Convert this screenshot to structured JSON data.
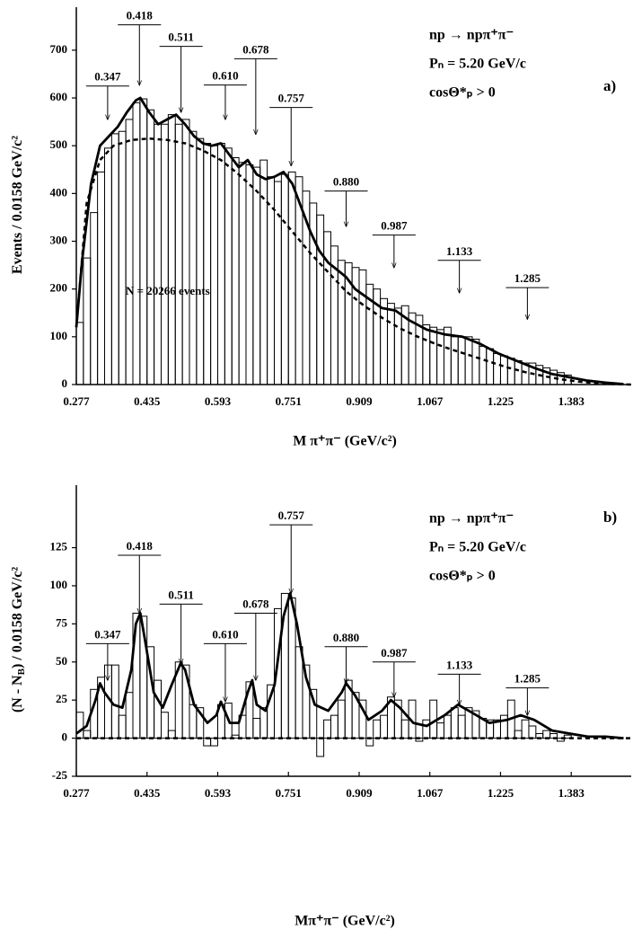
{
  "chart_data": [
    {
      "type": "histogram",
      "xlabel": "M π⁺π⁻ (GeV/c²)",
      "ylabel": [
        "Events / 0.0158 GeV/c²"
      ],
      "info": [
        "np → npπ⁺π⁻",
        "Pₙ = 5.20 GeV/c",
        "cosΘ*ₚ > 0"
      ],
      "panel_label": "a)",
      "note": "N = 20266 events",
      "color": "#000000",
      "xlim": [
        0.277,
        1.517
      ],
      "ylim": [
        0,
        790
      ],
      "xticks": [
        0.277,
        0.435,
        0.593,
        0.751,
        0.909,
        1.067,
        1.225,
        1.383
      ],
      "yticks": [
        0,
        100,
        200,
        300,
        400,
        500,
        600,
        700
      ],
      "bins": [
        0.277,
        0.2928,
        0.3086,
        0.3244,
        0.3402,
        0.356,
        0.3718,
        0.3876,
        0.4034,
        0.4192,
        0.435,
        0.4508,
        0.4666,
        0.4824,
        0.4982,
        0.514,
        0.5298,
        0.5456,
        0.5614,
        0.5772,
        0.593,
        0.6088,
        0.6246,
        0.6404,
        0.6562,
        0.672,
        0.6878,
        0.7036,
        0.7194,
        0.7352,
        0.751,
        0.7668,
        0.7826,
        0.7984,
        0.8142,
        0.83,
        0.8458,
        0.8616,
        0.8774,
        0.8932,
        0.909,
        0.9248,
        0.9406,
        0.9564,
        0.9722,
        0.988,
        1.0038,
        1.0196,
        1.0354,
        1.0512,
        1.067,
        1.0828,
        1.0986,
        1.1144,
        1.1302,
        1.146,
        1.1618,
        1.1776,
        1.1934,
        1.2092,
        1.225,
        1.2408,
        1.2566,
        1.2724,
        1.2882,
        1.304,
        1.3198,
        1.3356,
        1.3514,
        1.3672,
        1.383
      ],
      "values": [
        130,
        265,
        360,
        445,
        495,
        525,
        530,
        555,
        590,
        598,
        575,
        545,
        545,
        565,
        545,
        555,
        530,
        515,
        505,
        500,
        505,
        495,
        475,
        465,
        460,
        455,
        470,
        435,
        425,
        440,
        445,
        435,
        405,
        380,
        355,
        320,
        290,
        260,
        255,
        245,
        240,
        210,
        200,
        180,
        170,
        160,
        165,
        150,
        145,
        125,
        120,
        115,
        120,
        100,
        100,
        100,
        95,
        80,
        75,
        65,
        60,
        55,
        50,
        45,
        45,
        40,
        35,
        30,
        25,
        20
      ],
      "fit": {
        "x": [
          0.277,
          0.29,
          0.31,
          0.33,
          0.35,
          0.37,
          0.39,
          0.41,
          0.42,
          0.44,
          0.46,
          0.48,
          0.5,
          0.52,
          0.54,
          0.56,
          0.58,
          0.6,
          0.62,
          0.64,
          0.66,
          0.68,
          0.7,
          0.72,
          0.74,
          0.76,
          0.78,
          0.8,
          0.82,
          0.84,
          0.86,
          0.88,
          0.9,
          0.93,
          0.96,
          0.99,
          1.02,
          1.06,
          1.1,
          1.14,
          1.18,
          1.22,
          1.26,
          1.3,
          1.34,
          1.38,
          1.42,
          1.46,
          1.5
        ],
        "values": [
          120,
          260,
          420,
          500,
          520,
          540,
          570,
          595,
          600,
          570,
          545,
          555,
          565,
          545,
          520,
          505,
          500,
          505,
          480,
          455,
          470,
          440,
          430,
          435,
          445,
          420,
          370,
          320,
          280,
          255,
          240,
          225,
          200,
          180,
          160,
          155,
          135,
          115,
          105,
          100,
          85,
          65,
          50,
          35,
          22,
          15,
          8,
          4,
          1
        ]
      },
      "background": {
        "x": [
          0.277,
          0.3,
          0.33,
          0.36,
          0.4,
          0.44,
          0.48,
          0.52,
          0.56,
          0.6,
          0.64,
          0.68,
          0.72,
          0.76,
          0.8,
          0.84,
          0.88,
          0.92,
          0.96,
          1.0,
          1.04,
          1.08,
          1.12,
          1.16,
          1.2,
          1.24,
          1.28,
          1.32,
          1.36,
          1.4,
          1.44,
          1.48,
          1.52
        ],
        "values": [
          120,
          380,
          470,
          500,
          512,
          515,
          512,
          505,
          490,
          470,
          440,
          405,
          365,
          320,
          275,
          235,
          195,
          165,
          140,
          118,
          100,
          85,
          72,
          60,
          48,
          36,
          26,
          18,
          11,
          6,
          3,
          1,
          0
        ]
      },
      "annotations": [
        {
          "x": {
            "value": 0.347,
            "label": "0.347"
          },
          "y": 625,
          "tip": 555
        },
        {
          "x": {
            "value": 0.418,
            "label": "0.418"
          },
          "y": 753,
          "tip": 627
        },
        {
          "x": {
            "value": 0.511,
            "label": "0.511"
          },
          "y": 708,
          "tip": 570
        },
        {
          "x": {
            "value": 0.61,
            "label": "0.610"
          },
          "y": 627,
          "tip": 555
        },
        {
          "x": {
            "value": 0.678,
            "label": "0.678"
          },
          "y": 682,
          "tip": 524
        },
        {
          "x": {
            "value": 0.757,
            "label": "0.757"
          },
          "y": 580,
          "tip": 458
        },
        {
          "x": {
            "value": 0.88,
            "label": "0.880"
          },
          "y": 405,
          "tip": 331
        },
        {
          "x": {
            "value": 0.987,
            "label": "0.987"
          },
          "y": 313,
          "tip": 245
        },
        {
          "x": {
            "value": 1.133,
            "label": "1.133"
          },
          "y": 260,
          "tip": 192
        },
        {
          "x": {
            "value": 1.285,
            "label": "1.285"
          },
          "y": 203,
          "tip": 137
        }
      ]
    },
    {
      "type": "histogram",
      "xlabel": "Mπ⁺π⁻ (GeV/c²)",
      "ylabel": [
        "(N - N",
        "B",
        ") / 0.0158 GeV/c²"
      ],
      "info": [
        "np → npπ⁺π⁻",
        "Pₙ = 5.20 GeV/c",
        "cosΘ*ₚ > 0"
      ],
      "panel_label": "b)",
      "color": "#000000",
      "xlim": [
        0.277,
        1.517
      ],
      "ylim": [
        -25,
        166
      ],
      "xticks": [
        0.277,
        0.435,
        0.593,
        0.751,
        0.909,
        1.067,
        1.225,
        1.383
      ],
      "yticks": [
        -25,
        0,
        25,
        50,
        75,
        100,
        125
      ],
      "bins": [
        0.277,
        0.2928,
        0.3086,
        0.3244,
        0.3402,
        0.356,
        0.3718,
        0.3876,
        0.4034,
        0.4192,
        0.435,
        0.4508,
        0.4666,
        0.4824,
        0.4982,
        0.514,
        0.5298,
        0.5456,
        0.5614,
        0.5772,
        0.593,
        0.6088,
        0.6246,
        0.6404,
        0.6562,
        0.672,
        0.6878,
        0.7036,
        0.7194,
        0.7352,
        0.751,
        0.7668,
        0.7826,
        0.7984,
        0.8142,
        0.83,
        0.8458,
        0.8616,
        0.8774,
        0.8932,
        0.909,
        0.9248,
        0.9406,
        0.9564,
        0.9722,
        0.988,
        1.0038,
        1.0196,
        1.0354,
        1.0512,
        1.067,
        1.0828,
        1.0986,
        1.1144,
        1.1302,
        1.146,
        1.1618,
        1.1776,
        1.1934,
        1.2092,
        1.225,
        1.2408,
        1.2566,
        1.2724,
        1.2882,
        1.304,
        1.3198,
        1.3356,
        1.3514,
        1.3672,
        1.383
      ],
      "values": [
        17,
        5,
        32,
        40,
        48,
        48,
        15,
        30,
        82,
        80,
        60,
        38,
        17,
        5,
        50,
        48,
        22,
        20,
        -5,
        -5,
        22,
        23,
        2,
        15,
        37,
        13,
        20,
        35,
        85,
        95,
        92,
        60,
        48,
        32,
        -12,
        12,
        15,
        25,
        38,
        30,
        25,
        -5,
        12,
        15,
        27,
        25,
        12,
        25,
        -2,
        12,
        25,
        10,
        15,
        20,
        15,
        20,
        18,
        13,
        12,
        12,
        15,
        25,
        5,
        12,
        8,
        3,
        5,
        3,
        -2,
        2
      ],
      "fit": {
        "x": [
          0.277,
          0.3,
          0.32,
          0.33,
          0.34,
          0.36,
          0.38,
          0.4,
          0.41,
          0.42,
          0.43,
          0.45,
          0.47,
          0.49,
          0.51,
          0.52,
          0.54,
          0.57,
          0.59,
          0.6,
          0.62,
          0.64,
          0.66,
          0.67,
          0.68,
          0.7,
          0.72,
          0.74,
          0.755,
          0.77,
          0.79,
          0.81,
          0.84,
          0.87,
          0.88,
          0.9,
          0.93,
          0.96,
          0.98,
          1.0,
          1.03,
          1.06,
          1.1,
          1.13,
          1.16,
          1.2,
          1.24,
          1.27,
          1.3,
          1.34,
          1.38,
          1.42,
          1.46,
          1.5
        ],
        "values": [
          3,
          8,
          25,
          36,
          30,
          22,
          20,
          45,
          75,
          82,
          65,
          30,
          20,
          35,
          49,
          45,
          22,
          10,
          15,
          24,
          10,
          10,
          30,
          38,
          22,
          18,
          35,
          80,
          95,
          75,
          40,
          22,
          18,
          30,
          36,
          28,
          12,
          18,
          25,
          20,
          10,
          8,
          15,
          22,
          17,
          10,
          12,
          15,
          12,
          5,
          3,
          1,
          1,
          0
        ]
      },
      "background": {
        "x": [
          0.277,
          1.52
        ],
        "values": [
          0,
          0
        ]
      },
      "annotations": [
        {
          "x": {
            "value": 0.347,
            "label": "0.347"
          },
          "y": 62,
          "tip": 38
        },
        {
          "x": {
            "value": 0.418,
            "label": "0.418"
          },
          "y": 120,
          "tip": 82
        },
        {
          "x": {
            "value": 0.511,
            "label": "0.511"
          },
          "y": 88,
          "tip": 49
        },
        {
          "x": {
            "value": 0.61,
            "label": "0.610"
          },
          "y": 62,
          "tip": 24
        },
        {
          "x": {
            "value": 0.678,
            "label": "0.678"
          },
          "y": 82,
          "tip": 38
        },
        {
          "x": {
            "value": 0.757,
            "label": "0.757"
          },
          "y": 140,
          "tip": 95
        },
        {
          "x": {
            "value": 0.88,
            "label": "0.880"
          },
          "y": 60,
          "tip": 36
        },
        {
          "x": {
            "value": 0.987,
            "label": "0.987"
          },
          "y": 50,
          "tip": 27
        },
        {
          "x": {
            "value": 1.133,
            "label": "1.133"
          },
          "y": 42,
          "tip": 22
        },
        {
          "x": {
            "value": 1.285,
            "label": "1.285"
          },
          "y": 33,
          "tip": 15
        }
      ]
    }
  ]
}
